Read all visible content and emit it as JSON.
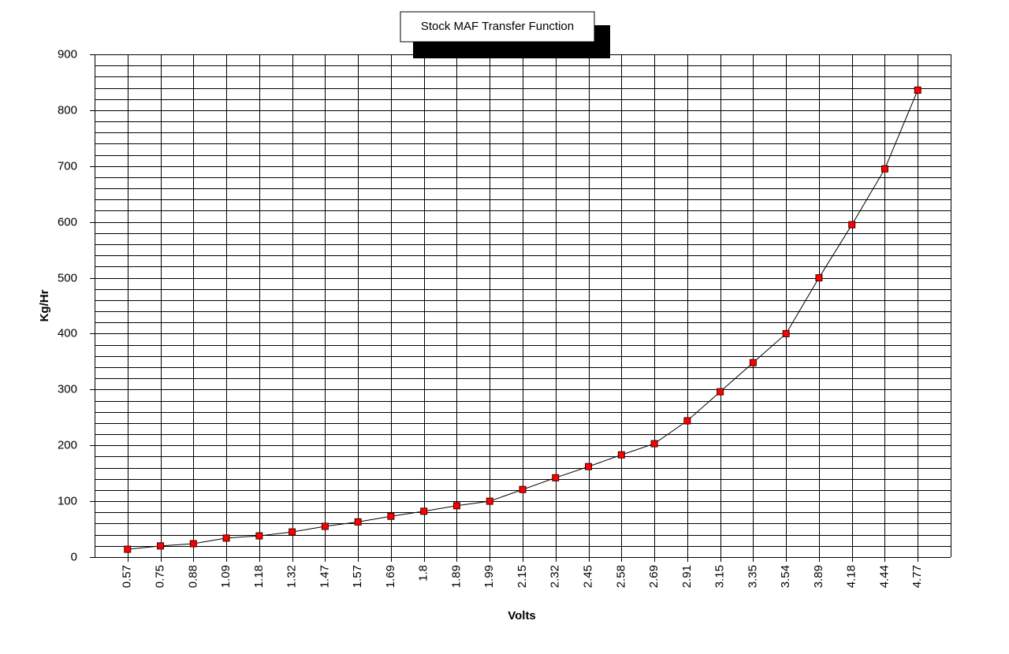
{
  "chart_data": {
    "type": "line",
    "title": "Stock MAF Transfer Function",
    "x_label": "Volts",
    "y_label": "Kg/Hr",
    "categories": [
      "0.57",
      "0.75",
      "0.88",
      "1.09",
      "1.18",
      "1.32",
      "1.47",
      "1.57",
      "1.69",
      "1.8",
      "1.89",
      "1.99",
      "2.15",
      "2.32",
      "2.45",
      "2.58",
      "2.69",
      "2.91",
      "3.15",
      "3.35",
      "3.54",
      "3.89",
      "4.18",
      "4.44",
      "4.77"
    ],
    "series": [
      {
        "name": "Kg/Hr",
        "color": "#ff0000",
        "values": [
          14,
          20,
          24,
          34,
          38,
          45,
          55,
          63,
          73,
          82,
          92,
          100,
          121,
          142,
          162,
          183,
          203,
          244,
          296,
          348,
          400,
          500,
          595,
          695,
          836
        ]
      }
    ],
    "ylim": [
      0,
      900
    ],
    "yticks": [
      0,
      100,
      200,
      300,
      400,
      500,
      600,
      700,
      800,
      900
    ],
    "yminorticks": [
      20,
      40,
      60,
      80,
      120,
      140,
      160,
      180,
      220,
      240,
      260,
      280,
      320,
      340,
      360,
      380,
      420,
      440,
      460,
      480,
      520,
      540,
      560,
      580,
      620,
      640,
      660,
      680,
      720,
      740,
      760,
      780,
      820,
      840,
      860,
      880
    ],
    "grid": true
  }
}
